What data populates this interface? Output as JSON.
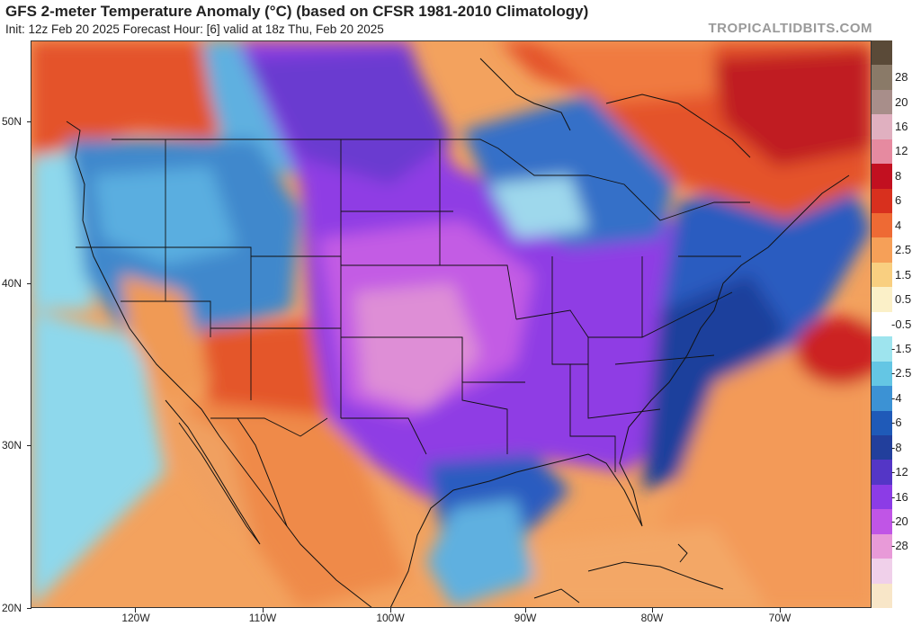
{
  "header": {
    "title": "GFS 2-meter Temperature Anomaly (°C) (based on CFSR 1981-2010 Climatology)",
    "subtitle": "Init: 12z Feb 20 2025   Forecast Hour: [6]   valid at 18z Thu, Feb 20 2025",
    "credit": "TROPICALTIDBITS.COM"
  },
  "colorbar": {
    "levels": [
      {
        "label": "28",
        "color": "#8a7a68"
      },
      {
        "label": "20",
        "color": "#a88e8a"
      },
      {
        "label": "16",
        "color": "#e0b0c0"
      },
      {
        "label": "12",
        "color": "#e68aa0"
      },
      {
        "label": "8",
        "color": "#c21020"
      },
      {
        "label": "6",
        "color": "#d8301e"
      },
      {
        "label": "4",
        "color": "#ee6a34"
      },
      {
        "label": "2.5",
        "color": "#f6a058"
      },
      {
        "label": "1.5",
        "color": "#f9cf80"
      },
      {
        "label": "0.5",
        "color": "#fbf0c8"
      },
      {
        "label": "-0.5",
        "color": "#ffffff"
      },
      {
        "label": "-1.5",
        "color": "#9ee4ee"
      },
      {
        "label": "-2.5",
        "color": "#64c6e4"
      },
      {
        "label": "-4",
        "color": "#3c92d4"
      },
      {
        "label": "-6",
        "color": "#1f5ab8"
      },
      {
        "label": "-8",
        "color": "#223f9c"
      },
      {
        "label": "-12",
        "color": "#5436c6"
      },
      {
        "label": "-16",
        "color": "#8c3ce6"
      },
      {
        "label": "-20",
        "color": "#c055e6"
      },
      {
        "label": "-28",
        "color": "#e89ad8"
      }
    ],
    "extra_colors": [
      "#5a4a38",
      "#f0d0ea",
      "#f8e6c8"
    ]
  },
  "axes": {
    "latitudes": [
      "50N",
      "40N",
      "30N",
      "20N"
    ],
    "longitudes": [
      "120W",
      "110W",
      "100W",
      "90W",
      "80W",
      "70W"
    ]
  }
}
